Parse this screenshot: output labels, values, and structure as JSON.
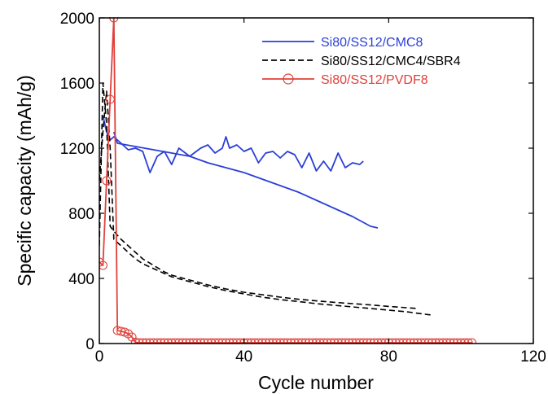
{
  "chart_data": {
    "type": "line",
    "title": "",
    "xlabel": "Cycle number",
    "ylabel": "Specific capacity (mAh/g)",
    "xlim": [
      0,
      120
    ],
    "ylim": [
      0,
      2000
    ],
    "xticks": [
      0,
      40,
      80,
      120
    ],
    "yticks": [
      0,
      400,
      800,
      1200,
      1600,
      2000
    ],
    "grid": false,
    "legend_position": "top-right",
    "series": [
      {
        "name": "Si80/SS12/CMC8",
        "color": "#2b3fd6",
        "style": "solid",
        "marker": "none",
        "x": [
          1,
          2,
          3,
          4,
          5,
          6,
          8,
          10,
          12,
          14,
          16,
          18,
          20,
          22,
          25,
          28,
          30,
          32,
          34,
          35,
          36,
          38,
          40,
          42,
          44,
          46,
          48,
          50,
          52,
          54,
          56,
          58,
          60,
          62,
          64,
          66,
          68,
          70,
          72,
          73
        ],
        "y": [
          1400,
          1300,
          1250,
          1270,
          1250,
          1230,
          1190,
          1200,
          1180,
          1050,
          1150,
          1180,
          1100,
          1200,
          1150,
          1200,
          1220,
          1170,
          1200,
          1270,
          1200,
          1220,
          1180,
          1200,
          1110,
          1170,
          1180,
          1140,
          1180,
          1160,
          1080,
          1170,
          1060,
          1120,
          1060,
          1170,
          1080,
          1110,
          1100,
          1120
        ]
      },
      {
        "name": "Si80/SS12/CMC8",
        "color": "#2b3fd6",
        "style": "solid",
        "marker": "none",
        "x": [
          4,
          5,
          10,
          15,
          20,
          25,
          30,
          35,
          40,
          45,
          50,
          55,
          60,
          65,
          70,
          75,
          77
        ],
        "y": [
          1300,
          1230,
          1210,
          1190,
          1170,
          1150,
          1110,
          1080,
          1050,
          1010,
          970,
          930,
          880,
          830,
          780,
          720,
          710
        ]
      },
      {
        "name": "Si80/SS12/CMC4/SBR4",
        "color": "#000000",
        "style": "dashed",
        "marker": "none",
        "x": [
          0,
          1,
          2,
          3,
          4,
          6,
          8,
          10,
          12,
          15,
          18,
          20,
          25,
          30,
          35,
          40,
          45,
          50,
          55,
          60,
          65,
          70,
          75,
          80,
          85,
          88
        ],
        "y": [
          600,
          1600,
          1350,
          720,
          690,
          640,
          600,
          560,
          520,
          480,
          440,
          420,
          390,
          360,
          335,
          315,
          300,
          285,
          272,
          262,
          253,
          245,
          237,
          228,
          220,
          215
        ]
      },
      {
        "name": "Si80/SS12/CMC4/SBR4",
        "color": "#000000",
        "style": "dashed",
        "marker": "none",
        "x": [
          0,
          1,
          2,
          3,
          4,
          6,
          8,
          10,
          12,
          15,
          18,
          20,
          25,
          30,
          35,
          40,
          45,
          50,
          55,
          60,
          65,
          70,
          75,
          80,
          85,
          90,
          92
        ],
        "y": [
          1000,
          1300,
          1550,
          1200,
          640,
          600,
          560,
          520,
          490,
          460,
          430,
          410,
          380,
          350,
          325,
          305,
          285,
          270,
          258,
          245,
          235,
          225,
          215,
          205,
          195,
          180,
          175
        ]
      },
      {
        "name": "Si80/SS12/PVDF8",
        "color": "#e0403a",
        "style": "solid",
        "marker": "circle",
        "x": [
          0,
          1,
          2,
          3,
          4,
          5,
          6,
          7,
          8,
          9,
          10,
          11,
          12,
          13,
          14,
          15,
          16,
          17,
          18,
          19,
          20,
          21,
          22,
          23,
          24,
          25,
          26,
          27,
          28,
          29,
          30,
          31,
          32,
          33,
          34,
          35,
          36,
          37,
          38,
          39,
          40,
          41,
          42,
          43,
          44,
          45,
          46,
          47,
          48,
          49,
          50,
          51,
          52,
          53,
          54,
          55,
          56,
          57,
          58,
          59,
          60,
          61,
          62,
          63,
          64,
          65,
          66,
          67,
          68,
          69,
          70,
          71,
          72,
          73,
          74,
          75,
          76,
          77,
          78,
          79,
          80,
          81,
          82,
          83,
          84,
          85,
          86,
          87,
          88,
          89,
          90,
          91,
          92,
          93,
          94,
          95,
          96,
          97,
          98,
          99,
          100,
          101,
          102,
          103
        ],
        "y": [
          500,
          480,
          1000,
          1500,
          2000,
          80,
          75,
          70,
          60,
          40,
          8,
          5,
          5,
          5,
          5,
          5,
          5,
          5,
          5,
          5,
          5,
          5,
          5,
          5,
          5,
          5,
          5,
          5,
          5,
          5,
          5,
          5,
          5,
          5,
          5,
          5,
          5,
          5,
          5,
          5,
          5,
          5,
          5,
          5,
          5,
          5,
          5,
          5,
          5,
          5,
          5,
          5,
          5,
          5,
          5,
          5,
          5,
          5,
          5,
          5,
          5,
          5,
          5,
          5,
          5,
          5,
          5,
          5,
          5,
          5,
          5,
          5,
          5,
          5,
          5,
          5,
          5,
          5,
          5,
          5,
          5,
          5,
          5,
          5,
          5,
          5,
          5,
          5,
          5,
          5,
          5,
          5,
          5,
          5,
          5,
          5,
          5,
          5,
          5,
          5,
          5,
          5,
          5,
          5
        ]
      }
    ],
    "legend": [
      {
        "label": "Si80/SS12/CMC8",
        "color": "#2b3fd6",
        "style": "solid",
        "marker": "none"
      },
      {
        "label": "Si80/SS12/CMC4/SBR4",
        "color": "#000000",
        "style": "dashed",
        "marker": "none"
      },
      {
        "label": "Si80/SS12/PVDF8",
        "color": "#e0403a",
        "style": "solid",
        "marker": "circle"
      }
    ]
  }
}
